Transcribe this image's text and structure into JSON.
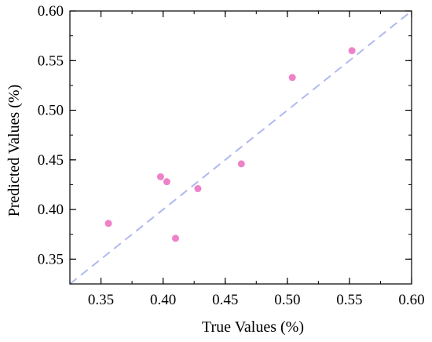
{
  "chart_data": {
    "type": "scatter",
    "title": "",
    "xlabel": "True Values (%)",
    "ylabel": "Predicted Values (%)",
    "xlim": [
      0.325,
      0.6
    ],
    "ylim": [
      0.325,
      0.6
    ],
    "xticks": [
      0.35,
      0.4,
      0.45,
      0.5,
      0.55,
      0.6
    ],
    "yticks": [
      0.35,
      0.4,
      0.45,
      0.5,
      0.55,
      0.6
    ],
    "xtick_labels": [
      "0.35",
      "0.40",
      "0.45",
      "0.50",
      "0.55",
      "0.60"
    ],
    "ytick_labels": [
      "0.35",
      "0.40",
      "0.45",
      "0.50",
      "0.55",
      "0.60"
    ],
    "grid": false,
    "legend": "none",
    "series": [
      {
        "points": [
          {
            "x": 0.356,
            "y": 0.386
          },
          {
            "x": 0.398,
            "y": 0.433
          },
          {
            "x": 0.403,
            "y": 0.428
          },
          {
            "x": 0.41,
            "y": 0.371
          },
          {
            "x": 0.428,
            "y": 0.421
          },
          {
            "x": 0.463,
            "y": 0.446
          },
          {
            "x": 0.504,
            "y": 0.533
          },
          {
            "x": 0.552,
            "y": 0.56
          }
        ],
        "color": "#ee82c8"
      }
    ],
    "reference_line": {
      "type": "y=x",
      "style": "dashed",
      "color": "#b0b8f0"
    }
  }
}
